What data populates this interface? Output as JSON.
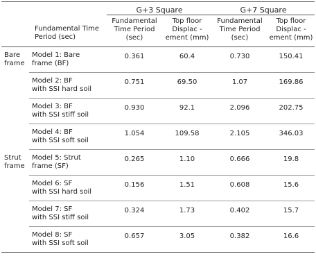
{
  "header": {
    "group_g3": "G+3 Square",
    "group_g7": "G+7 Square",
    "fundamental_label": "Fundamental Time Period (sec)",
    "g3_time": "Fundamental Time Period (sec)",
    "g3_disp": "Top floor Displac -ement (mm)",
    "g7_time": "Fundamental Time Period (sec)",
    "g7_disp": "Top floor Displac -ement (mm)"
  },
  "rows": [
    {
      "category": "Bare frame",
      "model_line1": "Model 1: Bare",
      "model_line2": "frame (BF)",
      "g3_time": "0.361",
      "g3_disp": "60.4",
      "g7_time": "0.730",
      "g7_disp": "150.41"
    },
    {
      "category": "",
      "model_line1": "Model 2: BF",
      "model_line2": "with SSI hard soil",
      "g3_time": "0.751",
      "g3_disp": "69.50",
      "g7_time": "1.07",
      "g7_disp": "169.86"
    },
    {
      "category": "",
      "model_line1": "Model 3: BF",
      "model_line2": "with SSI stiff soil",
      "g3_time": "0.930",
      "g3_disp": "92.1",
      "g7_time": "2.096",
      "g7_disp": "202.75"
    },
    {
      "category": "",
      "model_line1": "Model 4: BF",
      "model_line2": "with SSI soft soil",
      "g3_time": "1.054",
      "g3_disp": "109.58",
      "g7_time": "2.105",
      "g7_disp": "346.03"
    },
    {
      "category": "Strut frame",
      "model_line1": "Model 5: Strut",
      "model_line2": "frame (SF)",
      "g3_time": "0.265",
      "g3_disp": "1.10",
      "g7_time": "0.666",
      "g7_disp": "19.8"
    },
    {
      "category": "",
      "model_line1": "Model 6: SF",
      "model_line2": "with SSI hard soil",
      "g3_time": "0.156",
      "g3_disp": "1.51",
      "g7_time": "0.608",
      "g7_disp": "15.6"
    },
    {
      "category": "",
      "model_line1": "Model 7: SF",
      "model_line2": "with SSI stiff soil",
      "g3_time": "0.324",
      "g3_disp": "1.73",
      "g7_time": "0.402",
      "g7_disp": "15.7"
    },
    {
      "category": "",
      "model_line1": "Model 8: SF",
      "model_line2": "with SSI soft soil",
      "g3_time": "0.657",
      "g3_disp": "3.05",
      "g7_time": "0.382",
      "g7_disp": "16.6"
    }
  ]
}
